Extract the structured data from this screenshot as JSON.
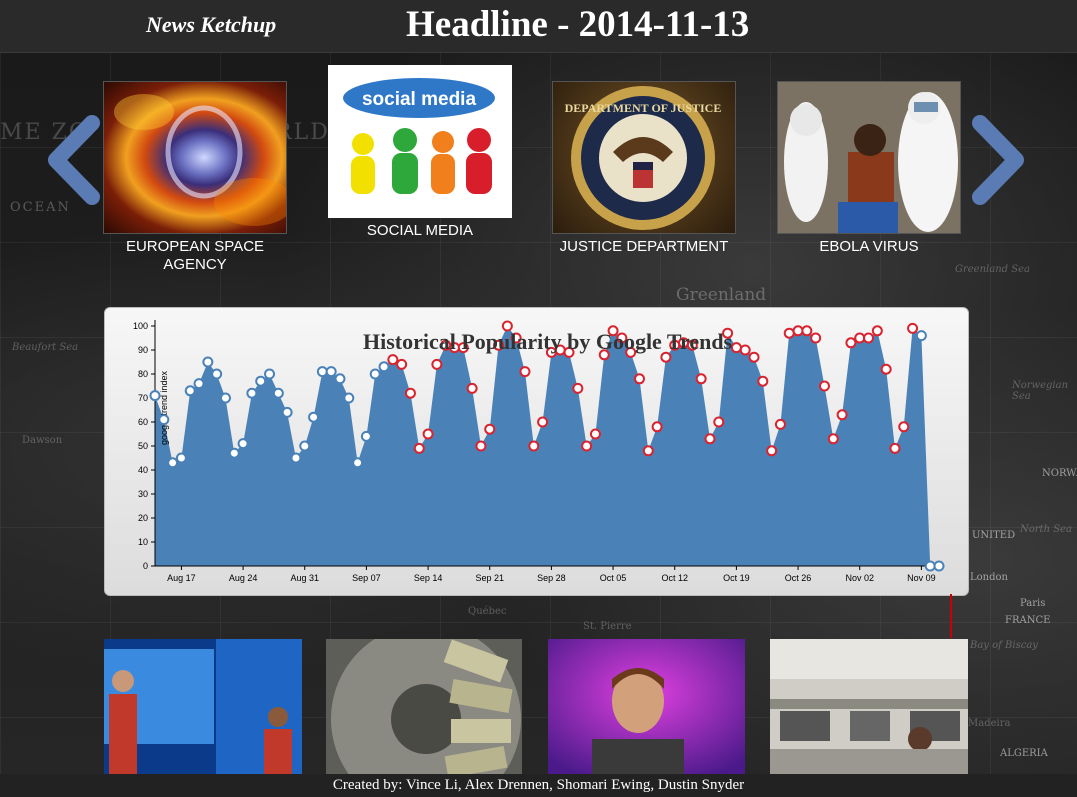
{
  "header": {
    "brand": "News Ketchup",
    "headline": "Headline - 2014-11-13"
  },
  "map_labels": [
    "ME ZO",
    "ORLD",
    "OCEAN",
    "Greenland",
    "Beaufort Sea",
    "Dawson",
    "Greenland Sea",
    "Norwegian Sea",
    "Québec",
    "St. Pierre",
    "UNITED",
    "London",
    "Paris",
    "FRANCE",
    "NORWA",
    "ALGERIA",
    "North Sea",
    "Bay of Biscay",
    "Madeira"
  ],
  "carousel": {
    "prev_icon": "chevron-left-icon",
    "next_icon": "chevron-right-icon",
    "accent": "#5b7bb5",
    "topics": [
      {
        "label": "EUROPEAN SPACE AGENCY",
        "selected": false
      },
      {
        "label": "SOCIAL MEDIA",
        "selected": true,
        "image_text": "social media"
      },
      {
        "label": "JUSTICE DEPARTMENT",
        "selected": false,
        "image_text": "DEPARTMENT OF JUSTICE"
      },
      {
        "label": "EBOLA VIRUS",
        "selected": false
      }
    ]
  },
  "chart_data": {
    "type": "area",
    "title": "Historical Popularity by Google Trends",
    "ylabel": "google trend index",
    "xlabel": "",
    "ylim": [
      0,
      100
    ],
    "yticks": [
      0,
      10,
      20,
      30,
      40,
      50,
      60,
      70,
      80,
      90,
      100
    ],
    "xticks": [
      "Aug 17",
      "Aug 24",
      "Aug 31",
      "Sep 07",
      "Sep 14",
      "Sep 21",
      "Sep 28",
      "Oct 05",
      "Oct 12",
      "Oct 19",
      "Oct 26",
      "Nov 02",
      "Nov 09"
    ],
    "fill_color": "#4a82b8",
    "point_color_before": "#4a82b8",
    "point_color_highlight": "#d9232e",
    "highlight_range": [
      27,
      86
    ],
    "values": [
      71,
      61,
      43,
      45,
      73,
      76,
      85,
      80,
      70,
      47,
      51,
      72,
      77,
      80,
      72,
      64,
      45,
      50,
      62,
      81,
      81,
      78,
      70,
      43,
      54,
      80,
      83,
      86,
      84,
      72,
      49,
      55,
      84,
      92,
      91,
      91,
      74,
      50,
      57,
      92,
      100,
      95,
      81,
      50,
      60,
      89,
      90,
      89,
      74,
      50,
      55,
      88,
      98,
      95,
      89,
      78,
      48,
      58,
      87,
      92,
      93,
      92,
      78,
      53,
      60,
      97,
      91,
      90,
      87,
      77,
      48,
      59,
      97,
      98,
      98,
      95,
      75,
      53,
      63,
      93,
      95,
      95,
      98,
      82,
      49,
      58,
      99,
      96,
      0,
      0
    ],
    "start_date": "2014-08-14"
  },
  "bottom_images": [
    {
      "caption": "speaker on stage"
    },
    {
      "caption": "money counting wheel"
    },
    {
      "caption": "speaker with purple backdrop"
    },
    {
      "caption": "newsroom"
    }
  ],
  "footer": {
    "credits": "Created by: Vince Li, Alex Drennen, Shomari Ewing, Dustin Snyder"
  }
}
